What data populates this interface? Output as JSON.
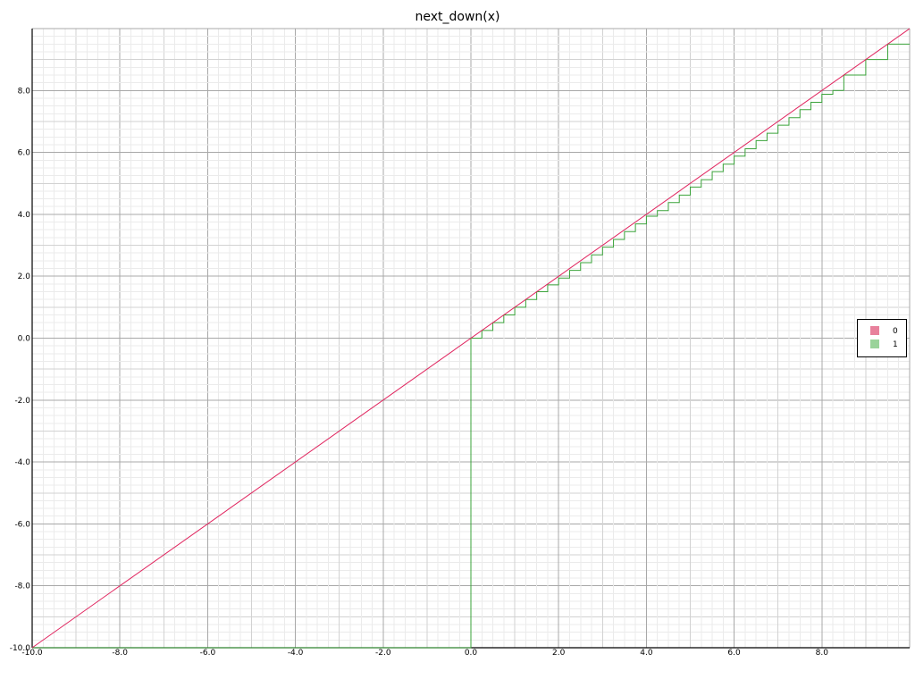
{
  "chart_data": {
    "type": "line",
    "title": "next_down(x)",
    "xlabel": "",
    "ylabel": "",
    "xlim": [
      -10,
      10
    ],
    "ylim": [
      -10,
      10
    ],
    "x_ticks": [
      -10,
      -8,
      -6,
      -4,
      -2,
      0,
      2,
      4,
      6,
      8
    ],
    "y_ticks": [
      -10,
      -8,
      -6,
      -4,
      -2,
      0,
      2,
      4,
      6,
      8
    ],
    "x_tick_labels": [
      "-10.0",
      "-8.0",
      "-6.0",
      "-4.0",
      "-2.0",
      "0.0",
      "2.0",
      "4.0",
      "6.0",
      "8.0"
    ],
    "y_tick_labels": [
      "-10.0",
      "-8.0",
      "-6.0",
      "-4.0",
      "-2.0",
      "0.0",
      "2.0",
      "4.0",
      "6.0",
      "8.0"
    ],
    "grid": true,
    "legend_position": "right",
    "series": [
      {
        "name": "0",
        "color": "#e0245e",
        "legend_color": "#e8819c",
        "x": [
          -10,
          10
        ],
        "y": [
          -10,
          10
        ]
      },
      {
        "name": "1",
        "color": "#3aa33a",
        "legend_color": "#9ad39a",
        "x": [
          -10,
          0,
          0,
          0.25,
          0.5,
          0.75,
          1,
          1.25,
          1.5,
          1.75,
          2,
          2.25,
          2.5,
          2.75,
          3,
          3.25,
          3.5,
          3.75,
          4,
          4.25,
          4.5,
          4.75,
          5,
          5.25,
          5.5,
          5.75,
          6,
          6.25,
          6.5,
          6.75,
          7,
          7.25,
          7.5,
          7.75,
          8,
          8.25,
          8.5,
          8.75,
          9,
          9.25,
          9.5,
          9.75,
          10
        ],
        "y": [
          -10,
          -10,
          0,
          0.25,
          0.5,
          0.75,
          1,
          1.25,
          1.5,
          1.72,
          1.94,
          2.19,
          2.44,
          2.69,
          2.94,
          3.19,
          3.44,
          3.69,
          3.94,
          4.12,
          4.38,
          4.62,
          4.88,
          5.12,
          5.38,
          5.62,
          5.88,
          6.12,
          6.38,
          6.62,
          6.88,
          7.12,
          7.38,
          7.62,
          7.88,
          8.0,
          8.5,
          8.5,
          9.0,
          9.0,
          9.5,
          9.5,
          9.5
        ],
        "step": true
      }
    ]
  }
}
